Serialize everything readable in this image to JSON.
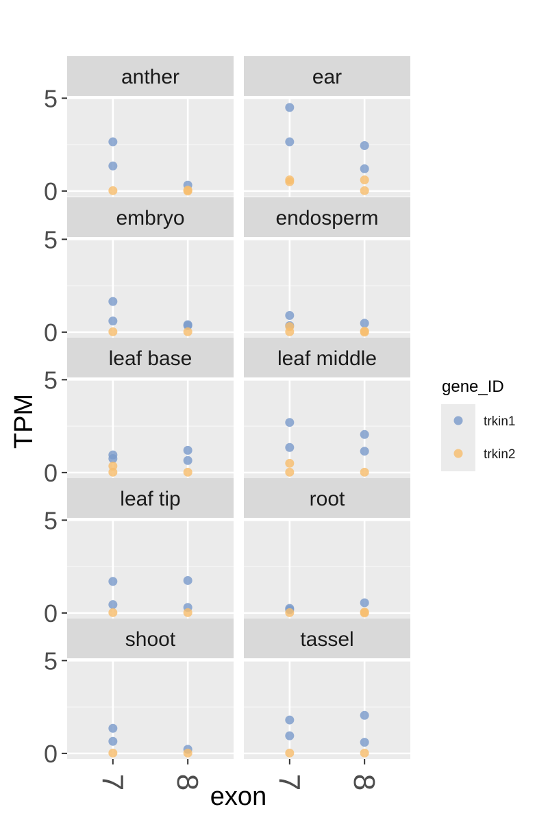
{
  "chart_data": {
    "type": "scatter",
    "facet_by": "tissue",
    "facet_columns": 2,
    "xlabel": "exon",
    "ylabel": "TPM",
    "x_categories": [
      "7",
      "8"
    ],
    "y_ticks": [
      0,
      5
    ],
    "ylim": [
      -0.3,
      5.05
    ],
    "grid": true,
    "legend": {
      "title": "gene_ID",
      "placement": "right",
      "entries": [
        {
          "name": "trkin1",
          "color": "#7b9bcb"
        },
        {
          "name": "trkin2",
          "color": "#f6bd6e"
        }
      ]
    },
    "panels": [
      {
        "label": "anther",
        "points": [
          {
            "x": "7",
            "gene": "trkin1",
            "y": 2.65
          },
          {
            "x": "7",
            "gene": "trkin1",
            "y": 1.35
          },
          {
            "x": "7",
            "gene": "trkin2",
            "y": 0.02
          },
          {
            "x": "8",
            "gene": "trkin1",
            "y": 0.32
          },
          {
            "x": "8",
            "gene": "trkin2",
            "y": 0.05
          },
          {
            "x": "8",
            "gene": "trkin2",
            "y": 0.0
          }
        ]
      },
      {
        "label": "ear",
        "points": [
          {
            "x": "7",
            "gene": "trkin1",
            "y": 4.5
          },
          {
            "x": "7",
            "gene": "trkin1",
            "y": 2.65
          },
          {
            "x": "7",
            "gene": "trkin2",
            "y": 0.6
          },
          {
            "x": "7",
            "gene": "trkin2",
            "y": 0.5
          },
          {
            "x": "8",
            "gene": "trkin1",
            "y": 2.45
          },
          {
            "x": "8",
            "gene": "trkin1",
            "y": 1.2
          },
          {
            "x": "8",
            "gene": "trkin2",
            "y": 0.6
          },
          {
            "x": "8",
            "gene": "trkin2",
            "y": 0.02
          }
        ]
      },
      {
        "label": "embryo",
        "points": [
          {
            "x": "7",
            "gene": "trkin1",
            "y": 1.65
          },
          {
            "x": "7",
            "gene": "trkin1",
            "y": 0.6
          },
          {
            "x": "7",
            "gene": "trkin2",
            "y": 0.02
          },
          {
            "x": "8",
            "gene": "trkin1",
            "y": 0.4
          },
          {
            "x": "8",
            "gene": "trkin1",
            "y": 0.35
          },
          {
            "x": "8",
            "gene": "trkin2",
            "y": 0.02
          }
        ]
      },
      {
        "label": "endosperm",
        "points": [
          {
            "x": "7",
            "gene": "trkin1",
            "y": 0.9
          },
          {
            "x": "7",
            "gene": "trkin1",
            "y": 0.35
          },
          {
            "x": "7",
            "gene": "trkin2",
            "y": 0.3
          },
          {
            "x": "7",
            "gene": "trkin2",
            "y": 0.02
          },
          {
            "x": "8",
            "gene": "trkin1",
            "y": 0.48
          },
          {
            "x": "8",
            "gene": "trkin2",
            "y": 0.05
          },
          {
            "x": "8",
            "gene": "trkin2",
            "y": 0.0
          }
        ]
      },
      {
        "label": "leaf base",
        "points": [
          {
            "x": "7",
            "gene": "trkin1",
            "y": 0.95
          },
          {
            "x": "7",
            "gene": "trkin1",
            "y": 0.75
          },
          {
            "x": "7",
            "gene": "trkin2",
            "y": 0.35
          },
          {
            "x": "7",
            "gene": "trkin2",
            "y": 0.02
          },
          {
            "x": "8",
            "gene": "trkin1",
            "y": 1.2
          },
          {
            "x": "8",
            "gene": "trkin1",
            "y": 0.65
          },
          {
            "x": "8",
            "gene": "trkin2",
            "y": 0.02
          }
        ]
      },
      {
        "label": "leaf middle",
        "points": [
          {
            "x": "7",
            "gene": "trkin1",
            "y": 2.7
          },
          {
            "x": "7",
            "gene": "trkin1",
            "y": 1.35
          },
          {
            "x": "7",
            "gene": "trkin2",
            "y": 0.5
          },
          {
            "x": "7",
            "gene": "trkin2",
            "y": 0.02
          },
          {
            "x": "8",
            "gene": "trkin1",
            "y": 2.05
          },
          {
            "x": "8",
            "gene": "trkin1",
            "y": 1.15
          },
          {
            "x": "8",
            "gene": "trkin2",
            "y": 0.02
          }
        ]
      },
      {
        "label": "leaf tip",
        "points": [
          {
            "x": "7",
            "gene": "trkin1",
            "y": 1.7
          },
          {
            "x": "7",
            "gene": "trkin1",
            "y": 0.45
          },
          {
            "x": "7",
            "gene": "trkin2",
            "y": 0.02
          },
          {
            "x": "8",
            "gene": "trkin1",
            "y": 1.75
          },
          {
            "x": "8",
            "gene": "trkin1",
            "y": 0.3
          },
          {
            "x": "8",
            "gene": "trkin2",
            "y": 0.02
          }
        ]
      },
      {
        "label": "root",
        "points": [
          {
            "x": "7",
            "gene": "trkin1",
            "y": 0.25
          },
          {
            "x": "7",
            "gene": "trkin1",
            "y": 0.18
          },
          {
            "x": "7",
            "gene": "trkin2",
            "y": 0.02
          },
          {
            "x": "8",
            "gene": "trkin1",
            "y": 0.55
          },
          {
            "x": "8",
            "gene": "trkin2",
            "y": 0.05
          },
          {
            "x": "8",
            "gene": "trkin2",
            "y": 0.0
          }
        ]
      },
      {
        "label": "shoot",
        "points": [
          {
            "x": "7",
            "gene": "trkin1",
            "y": 1.35
          },
          {
            "x": "7",
            "gene": "trkin1",
            "y": 0.65
          },
          {
            "x": "7",
            "gene": "trkin2",
            "y": 0.02
          },
          {
            "x": "8",
            "gene": "trkin1",
            "y": 0.22
          },
          {
            "x": "8",
            "gene": "trkin2",
            "y": 0.02
          }
        ]
      },
      {
        "label": "tassel",
        "points": [
          {
            "x": "7",
            "gene": "trkin1",
            "y": 1.8
          },
          {
            "x": "7",
            "gene": "trkin1",
            "y": 0.95
          },
          {
            "x": "7",
            "gene": "trkin2",
            "y": 0.02
          },
          {
            "x": "8",
            "gene": "trkin1",
            "y": 2.05
          },
          {
            "x": "8",
            "gene": "trkin1",
            "y": 0.6
          },
          {
            "x": "8",
            "gene": "trkin2",
            "y": 0.02
          }
        ]
      }
    ]
  }
}
